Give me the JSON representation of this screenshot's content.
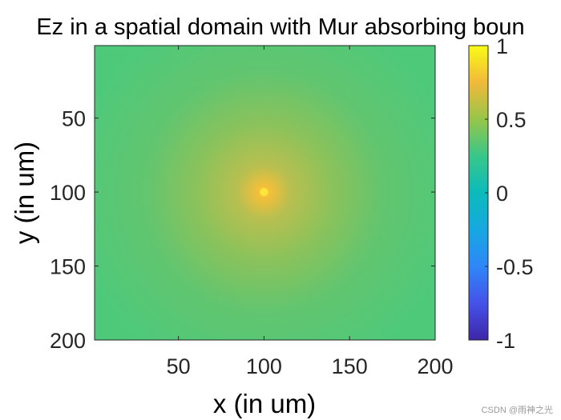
{
  "chart_data": {
    "type": "heatmap",
    "title": "Ez in a spatial domain with Mur absorbing boun",
    "xlabel": "x (in um)",
    "ylabel": "y (in um)",
    "xlim": [
      1,
      200
    ],
    "ylim": [
      1,
      200
    ],
    "y_reversed": true,
    "x_ticks": [
      50,
      100,
      150,
      200
    ],
    "y_ticks": [
      50,
      100,
      150,
      200
    ],
    "source": {
      "x": 100,
      "y": 100,
      "peak_value": 0.72
    },
    "background_value": 0.2,
    "colorbar": {
      "colormap": "parula",
      "limits": [
        -1,
        1
      ],
      "ticks": [
        1,
        0.5,
        0,
        -0.5,
        -1
      ],
      "tick_labels": [
        "1",
        "0.5",
        "0",
        "-0.5",
        "-1"
      ]
    }
  },
  "watermark": "CSDN @雨神之光"
}
